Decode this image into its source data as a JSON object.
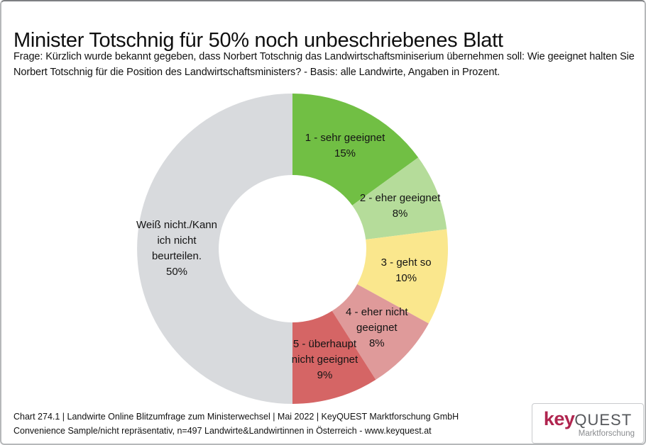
{
  "page": {
    "title": "Minister Totschnig für 50% noch unbeschriebenes Blatt",
    "subtitle_line1": "Frage: Kürzlich wurde bekannt gegeben, dass Norbert Totschnig das Landwirtschaftsminiserium übernehmen soll: Wie geeignet halten Sie",
    "subtitle_line2": "Norbert Totschnig für die Position des Landwirtschaftsministers? - Basis: alle Landwirte, Angaben in Prozent."
  },
  "chart_data": {
    "type": "pie",
    "subtype": "donut",
    "title": "Minister Totschnig für 50% noch unbeschriebenes Blatt",
    "unit": "percent",
    "start_angle_deg": 0,
    "direction": "clockwise",
    "inner_radius_ratio": 0.475,
    "segments": [
      {
        "label": "1 - sehr geeignet",
        "value": 15,
        "display": "15%",
        "color": "#71BF44",
        "lines": [
          "1 - sehr geeignet",
          "15%"
        ]
      },
      {
        "label": "2 - eher geeignet",
        "value": 8,
        "display": "8%",
        "color": "#B5DC9A",
        "lines": [
          "2 - eher geeignet",
          "8%"
        ]
      },
      {
        "label": "3 - geht so",
        "value": 10,
        "display": "10%",
        "color": "#FAE78D",
        "lines": [
          "3 - geht so",
          "10%"
        ]
      },
      {
        "label": "4 - eher nicht geeignet",
        "value": 8,
        "display": "8%",
        "color": "#DF9A9A",
        "lines": [
          "4 - eher nicht",
          "geeignet",
          "8%"
        ]
      },
      {
        "label": "5 - überhaupt nicht geeignet",
        "value": 9,
        "display": "9%",
        "color": "#D56565",
        "lines": [
          "5 - überhaupt",
          "nicht geeignet",
          "9%"
        ]
      },
      {
        "label": "Weiß nicht./Kann ich nicht beurteilen.",
        "value": 50,
        "display": "50%",
        "color": "#D8DADD",
        "lines": [
          "Weiß nicht./Kann",
          "ich nicht",
          "beurteilen.",
          "50%"
        ]
      }
    ]
  },
  "footer": {
    "line1": "Chart 274.1 | Landwirte Online Blitzumfrage zum Ministerwechsel | Mai 2022 | KeyQUEST Marktforschung GmbH",
    "line2": "Convenience Sample/nicht repräsentativ, n=497 Landwirte&Landwirtinnen in Österreich - www.keyquest.at"
  },
  "logo": {
    "brand_part1": "key",
    "brand_part2": "QUEST",
    "tagline": "Marktforschung",
    "color_key": "#B0254F",
    "color_quest": "#55575B",
    "color_tagline": "#8A8C8F"
  }
}
